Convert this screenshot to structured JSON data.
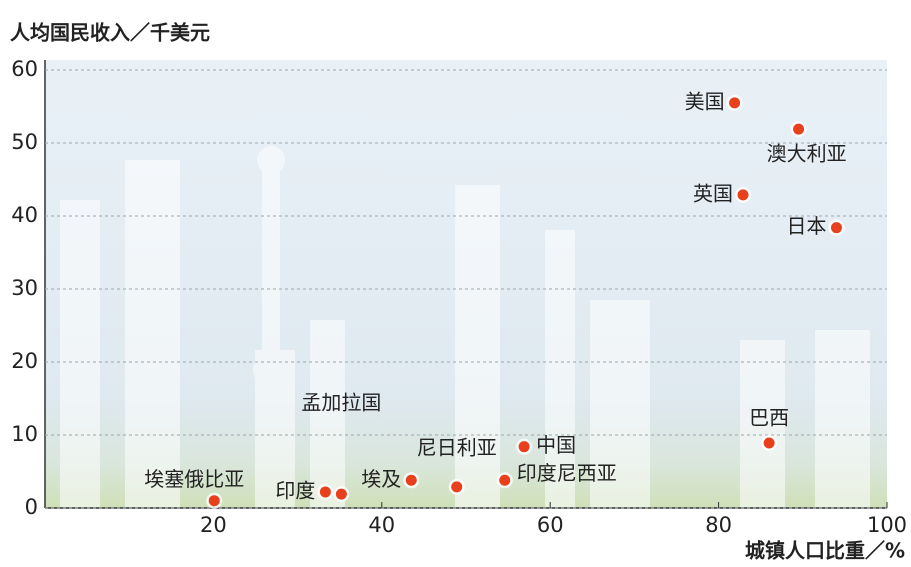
{
  "chart_data": {
    "type": "scatter",
    "ylabel": "人均国民收入／千美元",
    "xlabel": "城镇人口比重／%",
    "xlim": [
      0,
      100
    ],
    "xticks": [
      20,
      40,
      60,
      80,
      100
    ],
    "ylim": [
      0,
      60
    ],
    "yticks": [
      0,
      10,
      20,
      30,
      40,
      50,
      60
    ],
    "grid": true,
    "color": "#e8401c",
    "points": [
      {
        "label": "美国",
        "x": 81.9,
        "y": 55.5
      },
      {
        "label": "澳大利亚",
        "x": 89.5,
        "y": 51.9
      },
      {
        "label": "英国",
        "x": 82.9,
        "y": 42.9
      },
      {
        "label": "日本",
        "x": 94.0,
        "y": 38.4
      },
      {
        "label": "巴西",
        "x": 86.0,
        "y": 8.9
      },
      {
        "label": "中国",
        "x": 56.9,
        "y": 8.4
      },
      {
        "label": "尼日利亚",
        "x": 48.9,
        "y": 2.9
      },
      {
        "label": "印度尼西亚",
        "x": 54.6,
        "y": 3.8
      },
      {
        "label": "埃及",
        "x": 43.5,
        "y": 3.8
      },
      {
        "label": "孟加拉国",
        "x": 35.2,
        "y": 1.9
      },
      {
        "label": "印度",
        "x": 33.3,
        "y": 2.2
      },
      {
        "label": "埃塞俄比亚",
        "x": 20.1,
        "y": 1.0
      }
    ]
  }
}
